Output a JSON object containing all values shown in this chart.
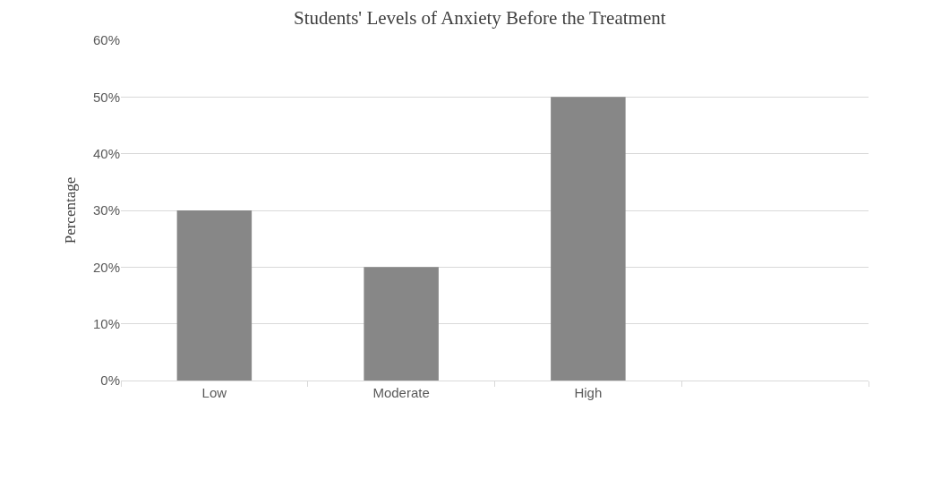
{
  "chart_data": {
    "type": "bar",
    "title": "Students' Levels of Anxiety Before the Treatment",
    "ylabel": "Percentage",
    "categories": [
      "Low",
      "Moderate",
      "High",
      null
    ],
    "values": [
      30,
      20,
      50,
      null
    ],
    "color": "#878787",
    "ylim": [
      0,
      60
    ],
    "yticks": [
      {
        "value": 0,
        "label": "0%"
      },
      {
        "value": 10,
        "label": "10%"
      },
      {
        "value": 20,
        "label": "20%"
      },
      {
        "value": 30,
        "label": "30%"
      },
      {
        "value": 40,
        "label": "40%"
      },
      {
        "value": 50,
        "label": "50%"
      },
      {
        "value": 60,
        "label": "60%"
      }
    ],
    "grid": "y",
    "legend": false
  }
}
